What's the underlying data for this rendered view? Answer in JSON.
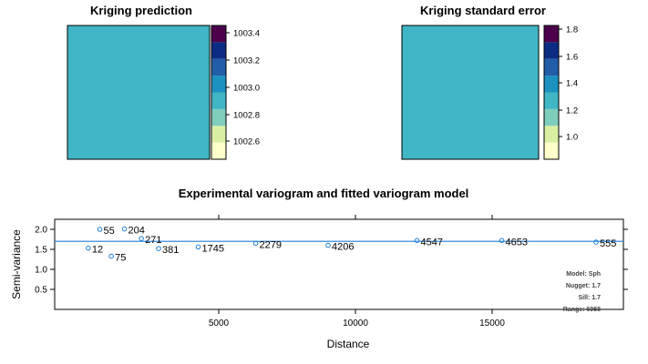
{
  "panels": {
    "prediction": {
      "title": "Kriging prediction",
      "fill_color": "#41B6C4",
      "legend_ticks": [
        "1003.4",
        "1003.2",
        "1003.0",
        "1002.8",
        "1002.6"
      ],
      "legend_colors": [
        "#FFFFCC",
        "#D9F0A3",
        "#7FCDBB",
        "#41B6C4",
        "#1D91C0",
        "#225EA8",
        "#0C2C84",
        "#4D004B"
      ]
    },
    "std_error": {
      "title": "Kriging standard error",
      "fill_color": "#41B6C4",
      "legend_ticks": [
        "1.8",
        "1.6",
        "1.4",
        "1.2",
        "1.0"
      ],
      "legend_colors": [
        "#FFFFCC",
        "#D9F0A3",
        "#7FCDBB",
        "#41B6C4",
        "#1D91C0",
        "#225EA8",
        "#0C2C84",
        "#4D004B"
      ]
    }
  },
  "chart_data": {
    "type": "scatter",
    "title": "Experimental variogram and fitted variogram model",
    "xlabel": "Distance",
    "ylabel": "Semi-variance",
    "xlim": [
      -1000,
      19800
    ],
    "ylim": [
      0,
      2.25
    ],
    "x_ticks": [
      "5000",
      "10000",
      "15000"
    ],
    "y_ticks": [
      "0.5",
      "1.0",
      "1.5",
      "2.0"
    ],
    "series": [
      {
        "points": [
          {
            "x": 230,
            "y": 1.53,
            "label": "12"
          },
          {
            "x": 650,
            "y": 2.0,
            "label": "55"
          },
          {
            "x": 1070,
            "y": 1.33,
            "label": "75"
          },
          {
            "x": 1550,
            "y": 2.01,
            "label": "204"
          },
          {
            "x": 2170,
            "y": 1.77,
            "label": "271"
          },
          {
            "x": 2800,
            "y": 1.52,
            "label": "381"
          },
          {
            "x": 4250,
            "y": 1.56,
            "label": "1745"
          },
          {
            "x": 6350,
            "y": 1.65,
            "label": "2279"
          },
          {
            "x": 9000,
            "y": 1.6,
            "label": "4206"
          },
          {
            "x": 12250,
            "y": 1.72,
            "label": "4547"
          },
          {
            "x": 15350,
            "y": 1.72,
            "label": "4653"
          },
          {
            "x": 18800,
            "y": 1.68,
            "label": "555"
          }
        ]
      }
    ],
    "model_line": {
      "y": 1.7,
      "color": "#1F7FD4"
    },
    "point_color": "#1F7FD4",
    "annotation": {
      "model": "Model: Sph",
      "nugget": "Nugget: 1.7",
      "sill": "Sill: 1.7",
      "range": "Range: 6058"
    }
  }
}
